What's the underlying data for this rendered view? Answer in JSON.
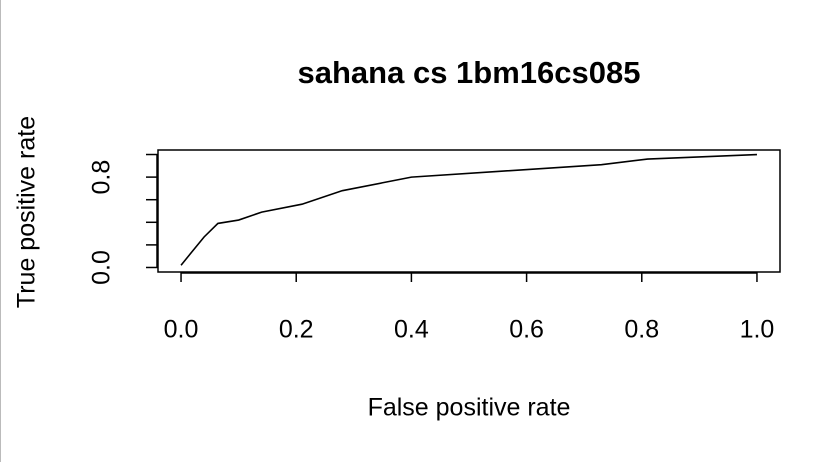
{
  "chart_data": {
    "type": "line",
    "title": "sahana cs 1bm16cs085",
    "x_label": "False positive rate",
    "y_label": "True positive rate",
    "series": [
      {
        "color": "#000000",
        "x": [
          0,
          0.016,
          0.04,
          0.064,
          0.1,
          0.14,
          0.21,
          0.28,
          0.35,
          0.4,
          0.55,
          0.73,
          0.81,
          1.0
        ],
        "values": [
          0.02,
          0.12,
          0.27,
          0.39,
          0.42,
          0.49,
          0.56,
          0.68,
          0.75,
          0.8,
          0.85,
          0.91,
          0.96,
          1.0
        ]
      }
    ],
    "xlim": [
      -0.04,
      1.04
    ],
    "ylim": [
      -0.04,
      1.04
    ],
    "xticks": [
      {
        "value": 0,
        "label": "0.0"
      },
      0.2,
      0.4,
      0.6,
      0.8,
      {
        "value": 1,
        "label": "1.0"
      }
    ],
    "yticks": [
      {
        "value": 0,
        "label": "0.0"
      },
      {
        "value": 0.2,
        "label": null
      },
      {
        "value": 0.4,
        "label": null
      },
      {
        "value": 0.6,
        "label": null
      },
      0.8,
      {
        "value": 1,
        "label": null
      }
    ]
  }
}
